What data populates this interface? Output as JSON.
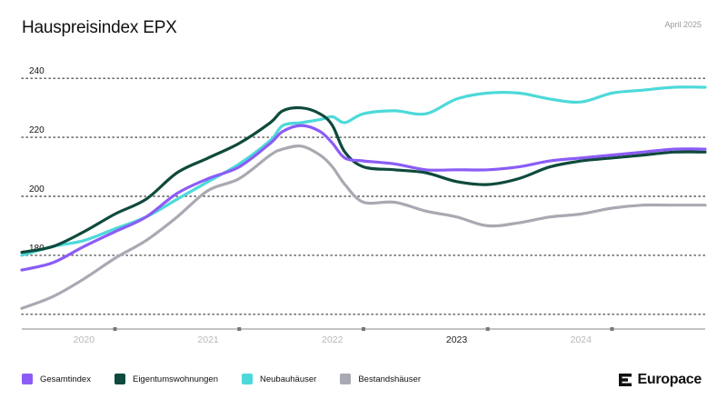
{
  "header": {
    "title": "Hauspreisindex EPX",
    "date": "April 2025"
  },
  "brand": {
    "name": "Europace"
  },
  "chart_data": {
    "type": "line",
    "title": "Hauspreisindex EPX",
    "xlabel": "",
    "ylabel": "",
    "ylim": [
      155,
      245
    ],
    "yticks": [
      180,
      200,
      220,
      240
    ],
    "grid": "horizontal dotted",
    "legend_position": "bottom-left",
    "categories": [
      "2020",
      "2021",
      "2022",
      "2023",
      "2024"
    ],
    "highlight_category": "2023",
    "x_start": 2019.5,
    "x_end": 2025.0,
    "x": [
      2019.5,
      2019.75,
      2020.0,
      2020.25,
      2020.5,
      2020.75,
      2021.0,
      2021.25,
      2021.5,
      2021.6,
      2021.75,
      2021.9,
      2022.0,
      2022.1,
      2022.25,
      2022.5,
      2022.75,
      2023.0,
      2023.25,
      2023.5,
      2023.75,
      2024.0,
      2024.25,
      2024.5,
      2024.75,
      2025.0
    ],
    "series": [
      {
        "name": "Gesamtindex",
        "color": "#8b5cf6",
        "values": [
          175,
          177.5,
          183,
          188,
          193,
          201,
          206,
          210,
          218,
          222,
          224,
          222,
          218,
          213,
          212,
          211,
          209,
          209,
          209,
          210,
          212,
          213,
          214,
          215,
          216,
          216
        ]
      },
      {
        "name": "Eigentumswohnungen",
        "color": "#0f4a3c",
        "values": [
          181,
          183,
          188,
          194,
          199,
          208,
          213,
          218,
          225,
          229,
          230,
          228,
          224,
          215,
          210,
          209,
          208,
          205,
          204,
          206,
          210,
          212,
          213,
          214,
          215,
          215
        ]
      },
      {
        "name": "Neubauhäuser",
        "color": "#4dd9d9",
        "values": [
          180,
          183,
          185,
          189,
          193,
          199,
          205,
          211,
          219,
          224,
          225,
          226,
          227,
          225,
          228,
          229,
          228,
          233,
          235,
          235,
          233,
          232,
          235,
          236,
          237,
          237
        ]
      },
      {
        "name": "Bestandshäuser",
        "color": "#a9a9b3",
        "values": [
          162,
          166,
          172,
          179,
          185,
          193,
          202,
          206,
          214,
          216,
          217,
          214,
          210,
          204,
          198,
          198,
          195,
          193,
          190,
          191,
          193,
          194,
          196,
          197,
          197,
          197
        ]
      }
    ]
  }
}
